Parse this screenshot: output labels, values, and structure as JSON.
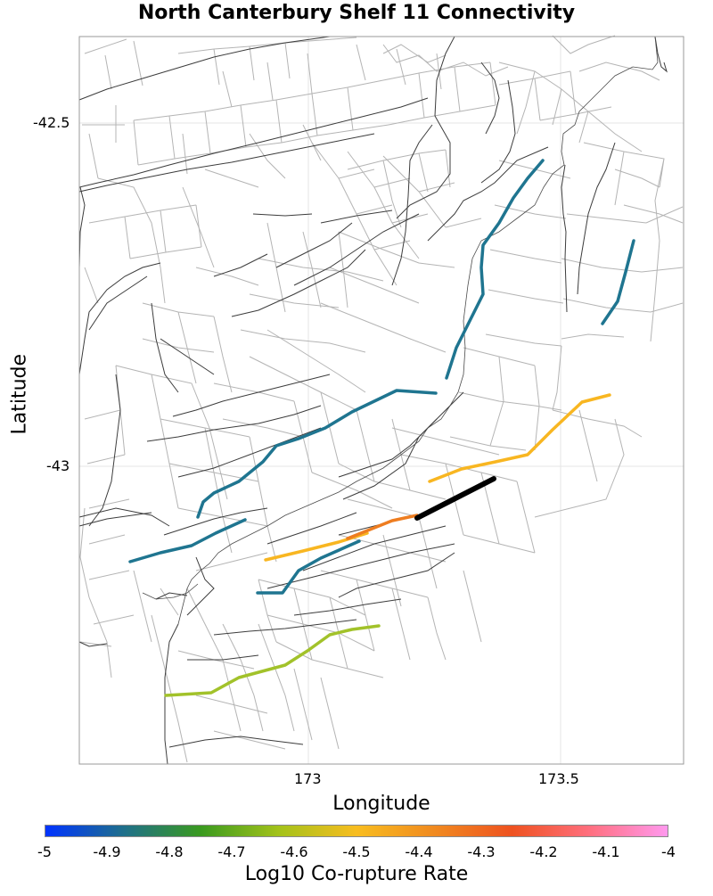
{
  "title": "North Canterbury Shelf 11 Connectivity",
  "map": {
    "xlabel": "Longitude",
    "ylabel": "Latitude",
    "x_ticks": [
      {
        "value": 173,
        "label": "173"
      },
      {
        "value": 173.5,
        "label": "173.5"
      }
    ],
    "y_ticks": [
      {
        "value": -42.5,
        "label": "-42.5"
      },
      {
        "value": -43,
        "label": "-43"
      }
    ],
    "lon_range": [
      172.54,
      173.77
    ],
    "lat_range": [
      -43.43,
      -42.37
    ],
    "grid": true
  },
  "colors": {
    "trace_dark": "#3c3c3c",
    "trace_light": "#b4b4b4",
    "source_section": "#000000",
    "rate_-4.9": "#1f7590",
    "rate_-4.6": "#a2c22a",
    "rate_-4.5": "#f8b621",
    "rate_-4.3": "#ee7d20"
  },
  "colorbar": {
    "label": "Log10 Co-rupture Rate",
    "ticks": [
      "-5",
      "-4.9",
      "-4.8",
      "-4.7",
      "-4.6",
      "-4.5",
      "-4.4",
      "-4.3",
      "-4.2",
      "-4.1",
      "-4"
    ],
    "colors": [
      "#0033ff",
      "#1f6f8b",
      "#3a9a1f",
      "#a3c21a",
      "#f8bd20",
      "#f08a20",
      "#ee5220",
      "#ff6f7f",
      "#ff99ee"
    ],
    "range": [
      -5,
      -4
    ]
  }
}
